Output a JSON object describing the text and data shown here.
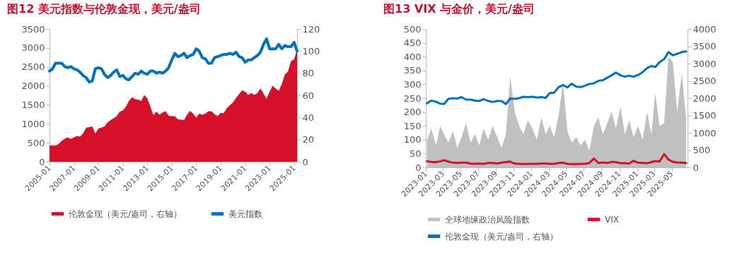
{
  "chart_data": [
    {
      "type": "area",
      "title": "图12  美元指数与伦敦金现，美元/盎司",
      "legend": "bottom",
      "xlim": [
        "2005-01",
        "2025-04"
      ],
      "xticks": [
        "2005-01",
        "2007-01",
        "2009-01",
        "2011-01",
        "2013-01",
        "2015-01",
        "2017-01",
        "2019-01",
        "2021-01",
        "2023-01",
        "2025-01"
      ],
      "ylim": [
        0,
        3500
      ],
      "yticks": [
        0,
        500,
        1000,
        1500,
        2000,
        2500,
        3000,
        3500
      ],
      "y2lim": [
        0,
        120
      ],
      "y2ticks": [
        0,
        20,
        40,
        60,
        80,
        100,
        120
      ],
      "x": [
        "2005-01",
        "2005-04",
        "2005-07",
        "2005-10",
        "2006-01",
        "2006-04",
        "2006-07",
        "2006-10",
        "2007-01",
        "2007-04",
        "2007-07",
        "2007-10",
        "2008-01",
        "2008-04",
        "2008-07",
        "2008-10",
        "2009-01",
        "2009-04",
        "2009-07",
        "2009-10",
        "2010-01",
        "2010-04",
        "2010-07",
        "2010-10",
        "2011-01",
        "2011-04",
        "2011-07",
        "2011-10",
        "2012-01",
        "2012-04",
        "2012-07",
        "2012-10",
        "2013-01",
        "2013-04",
        "2013-07",
        "2013-10",
        "2014-01",
        "2014-04",
        "2014-07",
        "2014-10",
        "2015-01",
        "2015-04",
        "2015-07",
        "2015-10",
        "2016-01",
        "2016-04",
        "2016-07",
        "2016-10",
        "2017-01",
        "2017-04",
        "2017-07",
        "2017-10",
        "2018-01",
        "2018-04",
        "2018-07",
        "2018-10",
        "2019-01",
        "2019-04",
        "2019-07",
        "2019-10",
        "2020-01",
        "2020-04",
        "2020-07",
        "2020-10",
        "2021-01",
        "2021-04",
        "2021-07",
        "2021-10",
        "2022-01",
        "2022-04",
        "2022-07",
        "2022-10",
        "2023-01",
        "2023-04",
        "2023-07",
        "2023-10",
        "2024-01",
        "2024-04",
        "2024-07",
        "2024-10",
        "2025-01",
        "2025-04"
      ],
      "series": [
        {
          "name": "伦敦金现（美元/盎司，右轴）",
          "type": "area",
          "color": "#d7102a",
          "values": [
            430,
            430,
            430,
            470,
            550,
            610,
            640,
            600,
            640,
            680,
            660,
            750,
            900,
            910,
            930,
            740,
            880,
            900,
            930,
            1040,
            1100,
            1150,
            1200,
            1320,
            1350,
            1450,
            1600,
            1700,
            1650,
            1640,
            1600,
            1760,
            1670,
            1450,
            1230,
            1320,
            1240,
            1300,
            1330,
            1210,
            1200,
            1200,
            1120,
            1110,
            1100,
            1240,
            1340,
            1270,
            1160,
            1270,
            1240,
            1270,
            1330,
            1330,
            1250,
            1200,
            1290,
            1280,
            1410,
            1490,
            1560,
            1680,
            1780,
            1880,
            1850,
            1760,
            1810,
            1760,
            1810,
            1930,
            1800,
            1660,
            1850,
            2000,
            1930,
            1870,
            2050,
            2300,
            2380,
            2650,
            2700,
            2950
          ]
        },
        {
          "name": "美元指数",
          "type": "line",
          "axis": "y2",
          "color": "#0070c0",
          "values": [
            82,
            84,
            89,
            89,
            89,
            86,
            85,
            86,
            84,
            83,
            81,
            78,
            76,
            72,
            73,
            84,
            85,
            84,
            79,
            76,
            78,
            81,
            83,
            77,
            78,
            75,
            74,
            77,
            80,
            79,
            82,
            80,
            79,
            82,
            82,
            80,
            81,
            80,
            82,
            85,
            92,
            98,
            95,
            96,
            98,
            94,
            96,
            97,
            102,
            100,
            94,
            93,
            89,
            89,
            94,
            95,
            96,
            97,
            97,
            98,
            97,
            99,
            95,
            94,
            90,
            92,
            92,
            94,
            96,
            99,
            106,
            111,
            102,
            102,
            102,
            106,
            102,
            105,
            104,
            104,
            108,
            100
          ]
        }
      ]
    },
    {
      "type": "area",
      "title": "图13  VIX 与金价，美元/盎司",
      "legend": "bottom",
      "xlim": [
        "2023-01-01",
        "2025-06-25"
      ],
      "xticks": [
        "2023-01",
        "2023-03",
        "2023-05",
        "2023-07",
        "2023-09",
        "2023-11",
        "2024-01",
        "2024-03",
        "2024-05",
        "2024-07",
        "2024-09",
        "2024-11",
        "2025-01",
        "2025-03",
        "2025-05"
      ],
      "ylim": [
        0,
        500
      ],
      "yticks": [
        0,
        50,
        100,
        150,
        200,
        250,
        300,
        350,
        400,
        450,
        500
      ],
      "y2lim": [
        0,
        4000
      ],
      "y2ticks": [
        0,
        500,
        1000,
        1500,
        2000,
        2500,
        3000,
        3500,
        4000
      ],
      "x": [
        "2023-01-05",
        "2023-01-20",
        "2023-02-05",
        "2023-02-20",
        "2023-03-05",
        "2023-03-20",
        "2023-04-05",
        "2023-04-20",
        "2023-05-05",
        "2023-05-20",
        "2023-06-05",
        "2023-06-20",
        "2023-07-05",
        "2023-07-20",
        "2023-08-05",
        "2023-08-20",
        "2023-09-05",
        "2023-09-20",
        "2023-10-05",
        "2023-10-20",
        "2023-11-05",
        "2023-11-20",
        "2023-12-05",
        "2023-12-20",
        "2024-01-05",
        "2024-01-20",
        "2024-02-05",
        "2024-02-20",
        "2024-03-05",
        "2024-03-20",
        "2024-04-05",
        "2024-04-20",
        "2024-05-05",
        "2024-05-20",
        "2024-06-05",
        "2024-06-20",
        "2024-07-05",
        "2024-07-20",
        "2024-08-05",
        "2024-08-20",
        "2024-09-05",
        "2024-09-20",
        "2024-10-05",
        "2024-10-20",
        "2024-11-05",
        "2024-11-20",
        "2024-12-05",
        "2024-12-20",
        "2025-01-05",
        "2025-01-20",
        "2025-02-05",
        "2025-02-20",
        "2025-03-05",
        "2025-03-20",
        "2025-04-05",
        "2025-04-20",
        "2025-05-05",
        "2025-05-20",
        "2025-06-05",
        "2025-06-20"
      ],
      "series": [
        {
          "name": "全球地缘政治风险指数",
          "type": "area",
          "color": "#c0c0c0",
          "values": [
            100,
            140,
            80,
            150,
            120,
            90,
            130,
            70,
            110,
            160,
            90,
            120,
            80,
            140,
            100,
            150,
            110,
            70,
            120,
            330,
            200,
            150,
            120,
            170,
            140,
            100,
            180,
            120,
            150,
            110,
            190,
            310,
            130,
            90,
            110,
            80,
            100,
            60,
            150,
            180,
            120,
            160,
            200,
            140,
            220,
            120,
            170,
            110,
            150,
            100,
            200,
            120,
            270,
            150,
            160,
            400,
            380,
            200,
            340,
            180
          ]
        },
        {
          "name": "VIX",
          "type": "line",
          "color": "#d7102a",
          "values": [
            22,
            20,
            19,
            22,
            26,
            21,
            17,
            16,
            17,
            17,
            14,
            13,
            14,
            13,
            16,
            16,
            14,
            17,
            19,
            21,
            14,
            13,
            12,
            13,
            13,
            13,
            14,
            14,
            13,
            13,
            16,
            17,
            13,
            12,
            12,
            13,
            13,
            16,
            32,
            16,
            18,
            16,
            20,
            19,
            15,
            15,
            14,
            24,
            17,
            16,
            15,
            19,
            23,
            21,
            48,
            28,
            20,
            18,
            17,
            16
          ]
        },
        {
          "name": "伦敦金现（美元/盎司，右轴）",
          "type": "line",
          "axis": "y2",
          "color": "#0070c0",
          "values": [
            1850,
            1930,
            1900,
            1840,
            1830,
            1980,
            2000,
            1990,
            2030,
            1960,
            1960,
            1930,
            1920,
            1970,
            1920,
            1890,
            1920,
            1920,
            1830,
            1990,
            1980,
            2000,
            2040,
            2030,
            2040,
            2020,
            2030,
            2010,
            2150,
            2160,
            2320,
            2380,
            2310,
            2420,
            2330,
            2320,
            2360,
            2410,
            2430,
            2500,
            2520,
            2590,
            2660,
            2740,
            2660,
            2620,
            2650,
            2620,
            2670,
            2750,
            2870,
            2930,
            2900,
            3040,
            3130,
            3330,
            3240,
            3280,
            3330,
            3350
          ]
        }
      ]
    }
  ]
}
